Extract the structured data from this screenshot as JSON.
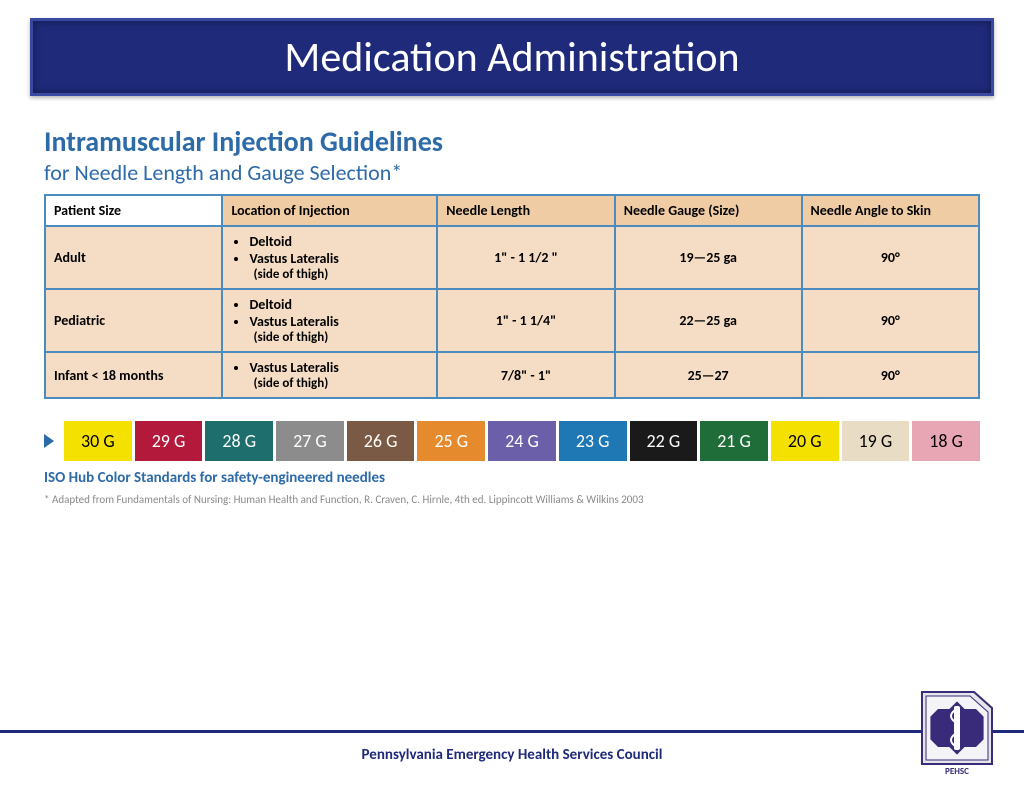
{
  "title": "Medication Administration",
  "guide": {
    "heading": "Intramuscular Injection Guidelines",
    "subheading": "for Needle Length and Gauge Selection*",
    "columns": [
      "Patient Size",
      "Location of Injection",
      "Needle Length",
      "Needle Gauge (Size)",
      "Needle Angle to Skin"
    ],
    "rows": [
      {
        "size": "Adult",
        "locations": [
          "Deltoid",
          "Vastus Lateralis"
        ],
        "loc_note": "(side of thigh)",
        "length": "1\" - 1  1/2 \"",
        "gauge": "19—25 ga",
        "angle": "90°"
      },
      {
        "size": "Pediatric",
        "locations": [
          "Deltoid",
          "Vastus Lateralis"
        ],
        "loc_note": "(side of thigh)",
        "length": "1\" - 1  1/4\"",
        "gauge": "22—25 ga",
        "angle": "90°"
      },
      {
        "size": "Infant < 18 months",
        "locations": [
          "Vastus Lateralis"
        ],
        "loc_note": "(side of thigh)",
        "length": "7/8\" - 1\"",
        "gauge": "25—27",
        "angle": "90°"
      }
    ],
    "header_bg": "#f0cca4",
    "cell_bg": "#f4ddc4",
    "border_color": "#4b8bbd",
    "heading_color": "#2d6aa8"
  },
  "gauges": [
    {
      "label": "30 G",
      "bg": "#f5e100",
      "fg": "#000000"
    },
    {
      "label": "29 G",
      "bg": "#b3193a",
      "fg": "#ffffff"
    },
    {
      "label": "28 G",
      "bg": "#1f6e6e",
      "fg": "#ffffff"
    },
    {
      "label": "27 G",
      "bg": "#8c8c8c",
      "fg": "#ffffff"
    },
    {
      "label": "26 G",
      "bg": "#7a5a44",
      "fg": "#ffffff"
    },
    {
      "label": "25 G",
      "bg": "#e68a2e",
      "fg": "#ffffff"
    },
    {
      "label": "24 G",
      "bg": "#6a5fa8",
      "fg": "#ffffff"
    },
    {
      "label": "23 G",
      "bg": "#1f78b4",
      "fg": "#ffffff"
    },
    {
      "label": "22 G",
      "bg": "#1a1a1a",
      "fg": "#ffffff"
    },
    {
      "label": "21 G",
      "bg": "#1f6e3a",
      "fg": "#ffffff"
    },
    {
      "label": "20 G",
      "bg": "#f5e100",
      "fg": "#000000"
    },
    {
      "label": "19 G",
      "bg": "#e8dcc4",
      "fg": "#000000"
    },
    {
      "label": "18 G",
      "bg": "#e8a6b4",
      "fg": "#000000"
    }
  ],
  "iso_label": "ISO Hub Color Standards for safety-engineered needles",
  "adapted": "* Adapted from Fundamentals of Nursing: Human Health and Function, R. Craven, C. Hirnle, 4th ed. Lippincott Williams & Wilkins 2003",
  "footer": "Pennsylvania Emergency Health Services Council",
  "logo": {
    "acronym": "PEHSC",
    "color": "#3a2a7a"
  },
  "colors": {
    "title_bg": "#1f2a7a",
    "title_border": "#3a4aa0",
    "title_text": "#ffffff",
    "footer_rule": "#1f2a7a"
  }
}
